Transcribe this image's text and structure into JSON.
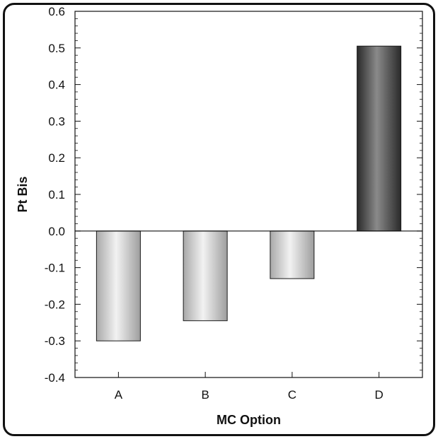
{
  "chart_data": {
    "type": "bar",
    "title": "",
    "xlabel": "MC Option",
    "ylabel": "Pt Bis",
    "categories": [
      "A",
      "B",
      "C",
      "D"
    ],
    "values": [
      -0.3,
      -0.245,
      -0.13,
      0.505
    ],
    "ylim": [
      -0.4,
      0.6
    ],
    "yticks": [
      "-0.4",
      "-0.3",
      "-0.2",
      "-0.1",
      "0.0",
      "0.1",
      "0.2",
      "0.3",
      "0.4",
      "0.5",
      "0.6"
    ],
    "grid": false,
    "legend": "none",
    "colors": {
      "negative_bar": "#c8c8c8",
      "positive_bar": "#555555",
      "axis": "#111111"
    }
  }
}
